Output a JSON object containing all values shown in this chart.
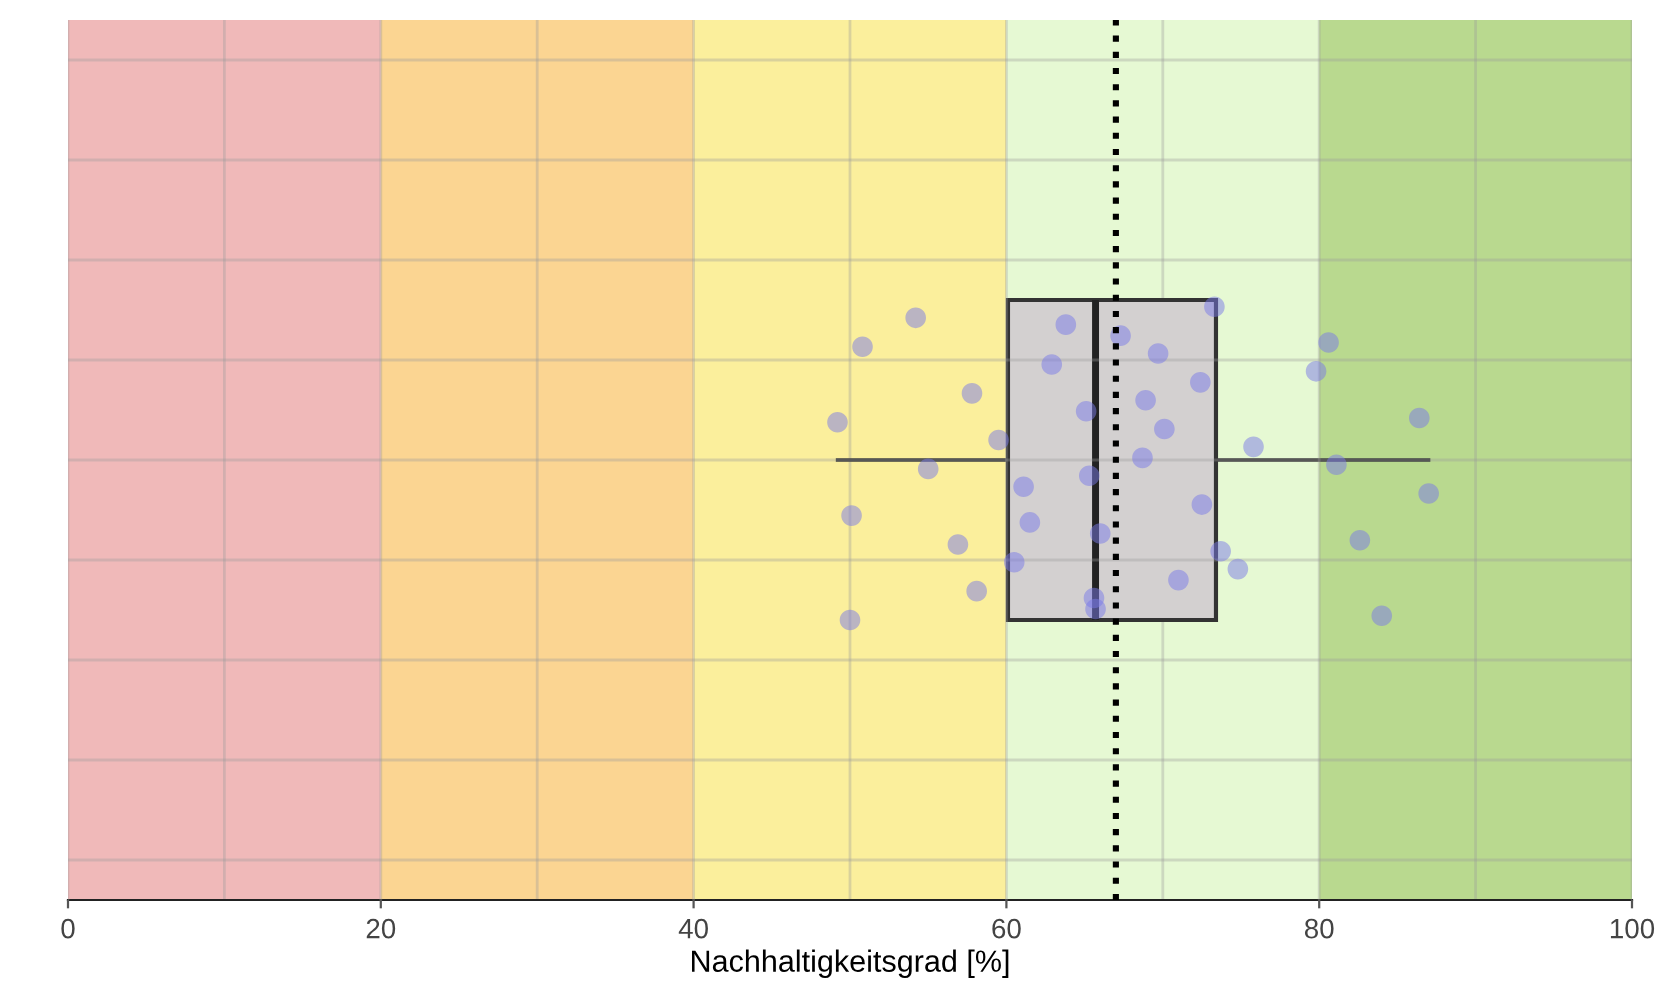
{
  "chart_data": {
    "type": "box",
    "orientation": "horizontal",
    "xlabel": "Nachhaltigkeitsgrad [%]",
    "categories": [
      null
    ],
    "boxes": [
      {
        "low": 49.2,
        "q1": 60.1,
        "median": 65.7,
        "q3": 73.4,
        "high": 87.0
      }
    ],
    "xlim": [
      0,
      100
    ],
    "xticks": [
      0,
      20,
      40,
      60,
      80,
      100
    ],
    "tick_labels": "x",
    "grid": true,
    "series": [
      {
        "type": "scatter",
        "color": "#7a7ae8",
        "marker": "circle",
        "x": [
          null,
          null,
          null,
          null,
          null,
          null,
          null,
          null,
          null,
          null,
          null,
          null,
          null,
          null,
          null,
          null,
          null,
          null,
          null,
          null,
          null,
          null,
          null,
          null,
          null,
          null,
          null,
          null,
          null,
          null,
          null,
          null,
          null,
          null,
          null,
          null,
          null,
          null,
          null
        ],
        "values": [
          50.0,
          49.2,
          56.9,
          50.8,
          55.0,
          58.1,
          57.8,
          50.1,
          54.2,
          59.5,
          60.5,
          62.9,
          61.1,
          65.7,
          65.1,
          66.0,
          67.3,
          68.7,
          71.0,
          72.4,
          72.5,
          73.3,
          70.1,
          73.7,
          69.7,
          65.3,
          65.6,
          68.9,
          61.5,
          63.8,
          75.8,
          74.8,
          79.8,
          87.0,
          84.0,
          86.4,
          82.6,
          80.6,
          81.1
        ]
      }
    ],
    "ref_lines": [
      {
        "axis": "x",
        "value": 67.0,
        "color": "#000000",
        "line_style": "dotted"
      }
    ],
    "bands": [
      {
        "axis": "x",
        "from": 0,
        "to": 20,
        "color": "#f0b9b9"
      },
      {
        "axis": "x",
        "from": 20,
        "to": 40,
        "color": "#fbd592"
      },
      {
        "axis": "x",
        "from": 40,
        "to": 60,
        "color": "#fbef9c"
      },
      {
        "axis": "x",
        "from": 60,
        "to": 80,
        "color": "#e6f9d3"
      },
      {
        "axis": "x",
        "from": 80,
        "to": 100,
        "color": "#b9d98f"
      }
    ]
  }
}
